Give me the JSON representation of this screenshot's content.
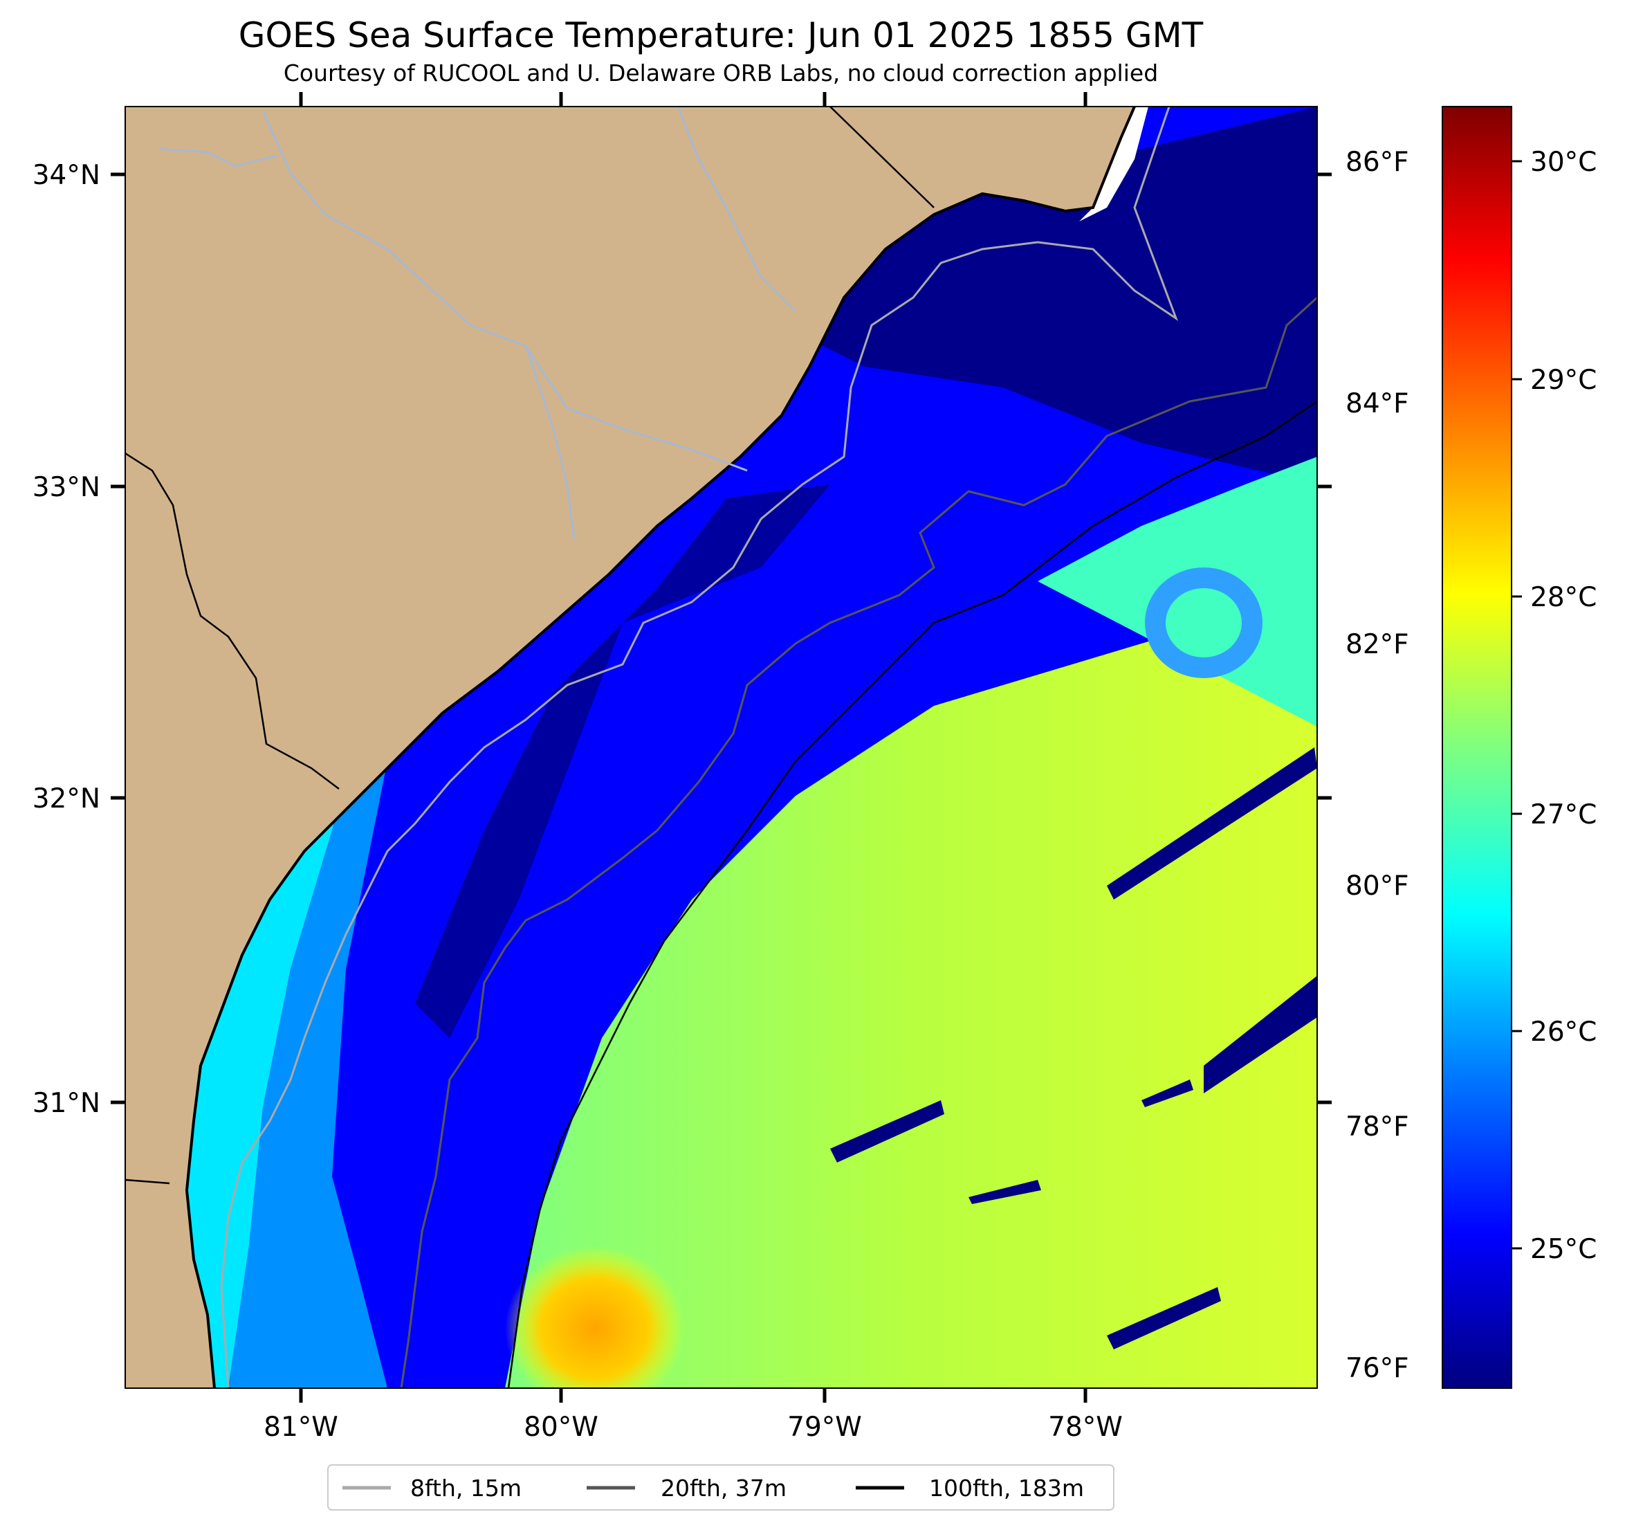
{
  "title": "GOES Sea Surface Temperature: Jun 01 2025 1855 GMT",
  "subtitle": "Courtesy of RUCOOL and U. Delaware ORB Labs, no cloud correction applied",
  "map": {
    "land_color": "#d2b48c",
    "coast_color": "#000000",
    "river_color": "#a8b8d0",
    "lat_labels": [
      "34°N",
      "33°N",
      "32°N",
      "31°N"
    ],
    "lon_labels": [
      "81°W",
      "80°W",
      "79°W",
      "78°W"
    ]
  },
  "colorbar": {
    "celsius_labels": [
      "30°C",
      "29°C",
      "28°C",
      "27°C",
      "26°C",
      "25°C"
    ],
    "fahrenheit_labels": [
      "86°F",
      "84°F",
      "82°F",
      "80°F",
      "78°F",
      "76°F"
    ],
    "colormap": "jet",
    "colors": [
      "#00007f",
      "#0000ff",
      "#007fff",
      "#00ffff",
      "#7fff7f",
      "#ffff00",
      "#ff7f00",
      "#ff0000",
      "#7f0000"
    ]
  },
  "legend": {
    "placement": "bottom-center",
    "items": [
      {
        "label": "8fth, 15m",
        "color": "#aaaaaa"
      },
      {
        "label": "20fth, 37m",
        "color": "#555555"
      },
      {
        "label": "100fth, 183m",
        "color": "#000000"
      }
    ]
  }
}
